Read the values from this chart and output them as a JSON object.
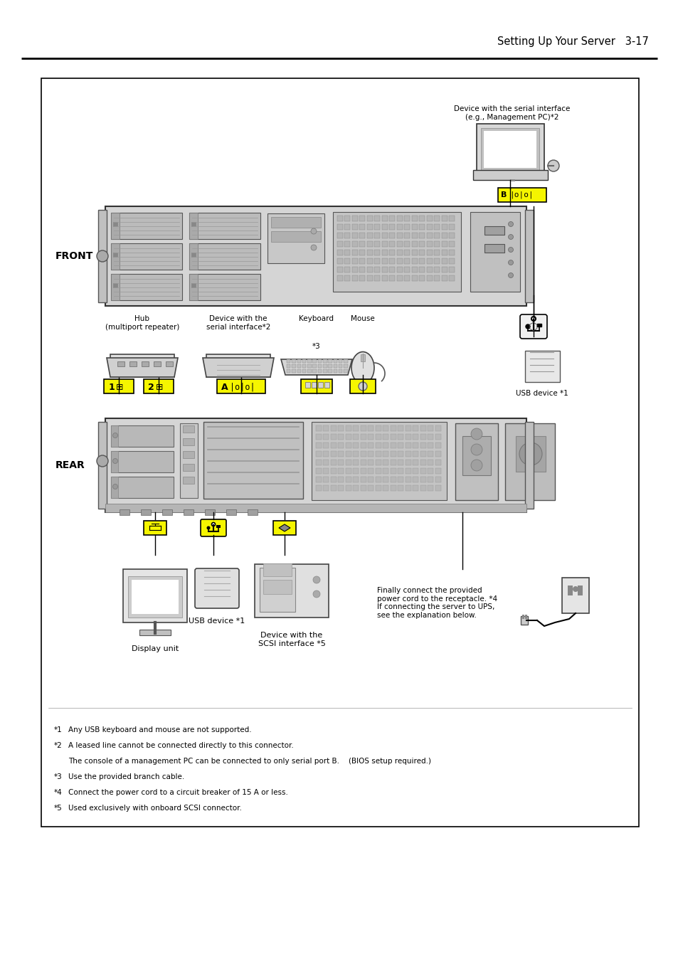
{
  "page_title": "Setting Up Your Server   3-17",
  "bg_color": "#ffffff",
  "highlight_yellow": "#f5f500",
  "footnotes": [
    [
      "*1",
      "Any USB keyboard and mouse are not supported."
    ],
    [
      "*2",
      "A leased line cannot be connected directly to this connector."
    ],
    [
      "",
      "The console of a management PC can be connected to only serial port B.    (BIOS setup required.)"
    ],
    [
      "*3",
      "Use the provided branch cable."
    ],
    [
      "*4",
      "Connect the power cord to a circuit breaker of 15 A or less."
    ],
    [
      "*5",
      "Used exclusively with onboard SCSI connector."
    ]
  ],
  "front_label": "FRONT",
  "rear_label": "REAR",
  "device_serial_label": "Device with the serial interface\n(e.g., Management PC)*2",
  "hub_label": "Hub\n(multiport repeater)",
  "device_serial2_label": "Device with the\nserial interface*2",
  "keyboard_label": "Keyboard",
  "mouse_label": "Mouse",
  "usb_device_label": "USB device *1",
  "display_label": "Display unit",
  "usb_device_bot_label": "USB device *1",
  "scsi_label": "Device with the\nSCSI interface *5",
  "power_label": "Finally connect the provided\npower cord to the receptacle. *4\nIf connecting the server to UPS,\nsee the explanation below."
}
